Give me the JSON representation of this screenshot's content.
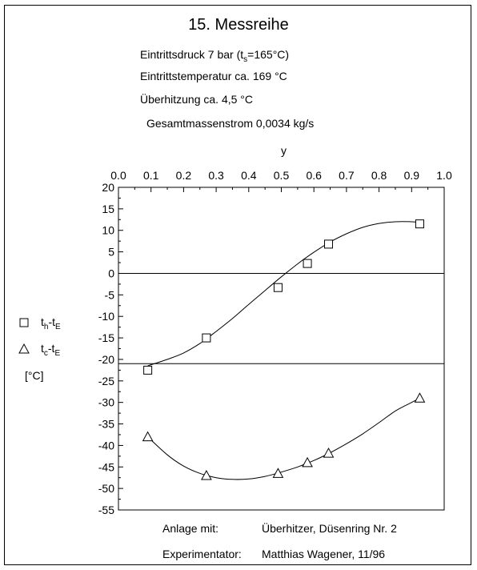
{
  "header": {
    "title": "15. Messreihe",
    "pressure_prefix": "Eintrittsdruck 7 bar (t",
    "pressure_sub": "s",
    "pressure_suffix": "=165°C)",
    "temperature": "Eintrittstemperatur ca. 169 °C",
    "superheat": "Überhitzung ca. 4,5 °C",
    "massflow": "Gesamtmassenstrom 0,0034 kg/s"
  },
  "footer": {
    "plant_label": "Anlage mit:",
    "plant_value": "Überhitzer, Düsenring Nr. 2",
    "experimenter_label": "Experimentator:",
    "experimenter_value": "Matthias Wagener, 11/96"
  },
  "colors": {
    "ink": "#000000",
    "background": "#ffffff"
  },
  "chart_data": {
    "type": "scatter",
    "title": "15. Messreihe",
    "xlabel": "y",
    "ylabel": "[°C]",
    "xlim": [
      0.0,
      1.0
    ],
    "ylim": [
      -55,
      20
    ],
    "x_axis_position": "top",
    "x_ticks": [
      "0.0",
      "0.1",
      "0.2",
      "0.3",
      "0.4",
      "0.5",
      "0.6",
      "0.7",
      "0.8",
      "0.9",
      "1.0"
    ],
    "y_ticks": [
      "20",
      "15",
      "10",
      "5",
      "0",
      "-5",
      "-10",
      "-15",
      "-20",
      "-25",
      "-30",
      "-35",
      "-40",
      "-45",
      "-50",
      "-55"
    ],
    "reference_lines_y": [
      0,
      -21
    ],
    "grid": false,
    "legend_position": "left",
    "series": [
      {
        "label_main": "t",
        "label_sub1": "h",
        "label_mid": "-t",
        "label_sub2": "E",
        "marker": "square",
        "x": [
          0.09,
          0.27,
          0.49,
          0.58,
          0.645,
          0.925
        ],
        "y": [
          -22.5,
          -15,
          -3.3,
          2.3,
          6.8,
          11.5
        ],
        "fit_x": [
          0.09,
          0.15,
          0.2,
          0.25,
          0.3,
          0.35,
          0.4,
          0.45,
          0.5,
          0.55,
          0.6,
          0.65,
          0.7,
          0.75,
          0.8,
          0.85,
          0.9,
          0.925
        ],
        "fit_y": [
          -21.5,
          -20.0,
          -18.5,
          -16.3,
          -13.5,
          -10.5,
          -7.2,
          -4.0,
          -0.8,
          2.2,
          4.9,
          7.3,
          9.2,
          10.7,
          11.6,
          12.0,
          12.0,
          11.8
        ]
      },
      {
        "label_main": "t",
        "label_sub1": "c",
        "label_mid": "-t",
        "label_sub2": "E",
        "marker": "triangle",
        "x": [
          0.09,
          0.27,
          0.49,
          0.58,
          0.645,
          0.925
        ],
        "y": [
          -38,
          -47,
          -46.5,
          -44,
          -41.8,
          -29
        ],
        "fit_x": [
          0.09,
          0.15,
          0.2,
          0.25,
          0.3,
          0.35,
          0.4,
          0.45,
          0.5,
          0.55,
          0.6,
          0.65,
          0.7,
          0.75,
          0.8,
          0.85,
          0.9,
          0.925
        ],
        "fit_y": [
          -38.0,
          -42.2,
          -44.8,
          -46.5,
          -47.5,
          -47.9,
          -47.8,
          -47.2,
          -46.2,
          -45.0,
          -43.5,
          -41.7,
          -39.6,
          -37.3,
          -34.7,
          -32.0,
          -30.0,
          -29.0
        ]
      }
    ]
  }
}
